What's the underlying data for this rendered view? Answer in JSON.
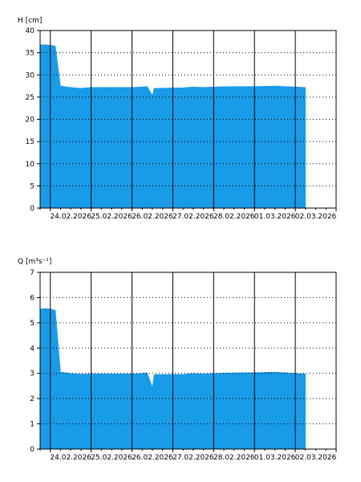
{
  "colors": {
    "fill": "#1a9be8",
    "frame": "#000000",
    "grid": "#000000",
    "background": "#ffffff"
  },
  "chart_data": [
    {
      "type": "area",
      "ylabel": "H [cm]",
      "ylim": [
        0,
        40
      ],
      "yticks": [
        0,
        5,
        10,
        15,
        20,
        25,
        30,
        35,
        40
      ],
      "xticks": [
        "24.02.2026",
        "25.02.2026",
        "26.02.2026",
        "27.02.2026",
        "28.02.2026",
        "01.03.2026",
        "02.03.2026"
      ],
      "xlim_days": [
        "23.02.2026 18:00",
        "03.03.2026 00:00"
      ],
      "grid": true,
      "series": [
        {
          "x": [
            "23.02.2026 18:00",
            "23.02.2026 21:00",
            "24.02.2026 00:00",
            "24.02.2026 03:00",
            "24.02.2026 06:00",
            "24.02.2026 12:00",
            "24.02.2026 18:00",
            "25.02.2026 00:00",
            "25.02.2026 12:00",
            "26.02.2026 00:00",
            "26.02.2026 06:00",
            "26.02.2026 09:00",
            "26.02.2026 12:00",
            "26.02.2026 13:00",
            "26.02.2026 15:00",
            "27.02.2026 00:00",
            "27.02.2026 06:00",
            "27.02.2026 12:00",
            "27.02.2026 18:00",
            "28.02.2026 00:00",
            "28.02.2026 12:00",
            "01.03.2026 00:00",
            "01.03.2026 12:00",
            "02.03.2026 00:00",
            "02.03.2026 06:00"
          ],
          "y": [
            36.8,
            36.8,
            36.7,
            36.5,
            27.5,
            27.2,
            27.0,
            27.2,
            27.2,
            27.2,
            27.3,
            27.4,
            25.4,
            27.0,
            27.0,
            27.1,
            27.1,
            27.3,
            27.2,
            27.3,
            27.4,
            27.4,
            27.5,
            27.3,
            27.2
          ]
        }
      ]
    },
    {
      "type": "area",
      "ylabel": "Q [m³s⁻¹]",
      "ylim": [
        0,
        7
      ],
      "yticks": [
        0,
        1,
        2,
        3,
        4,
        5,
        6,
        7
      ],
      "xticks": [
        "24.02.2026",
        "25.02.2026",
        "26.02.2026",
        "27.02.2026",
        "28.02.2026",
        "01.03.2026",
        "02.03.2026"
      ],
      "xlim_days": [
        "23.02.2026 18:00",
        "03.03.2026 00:00"
      ],
      "grid": true,
      "series": [
        {
          "x": [
            "23.02.2026 18:00",
            "23.02.2026 21:00",
            "24.02.2026 00:00",
            "24.02.2026 03:00",
            "24.02.2026 06:00",
            "24.02.2026 12:00",
            "24.02.2026 18:00",
            "25.02.2026 00:00",
            "25.02.2026 12:00",
            "26.02.2026 00:00",
            "26.02.2026 06:00",
            "26.02.2026 09:00",
            "26.02.2026 12:00",
            "26.02.2026 13:00",
            "26.02.2026 15:00",
            "27.02.2026 00:00",
            "27.02.2026 06:00",
            "27.02.2026 12:00",
            "27.02.2026 18:00",
            "28.02.2026 00:00",
            "28.02.2026 12:00",
            "01.03.2026 00:00",
            "01.03.2026 12:00",
            "02.03.2026 00:00",
            "02.03.2026 06:00"
          ],
          "y": [
            5.55,
            5.57,
            5.55,
            5.5,
            3.05,
            3.0,
            2.97,
            2.98,
            2.98,
            2.98,
            3.0,
            3.02,
            2.45,
            2.95,
            2.95,
            2.96,
            2.96,
            3.0,
            2.98,
            3.0,
            3.02,
            3.03,
            3.05,
            3.0,
            2.98
          ]
        }
      ]
    }
  ]
}
